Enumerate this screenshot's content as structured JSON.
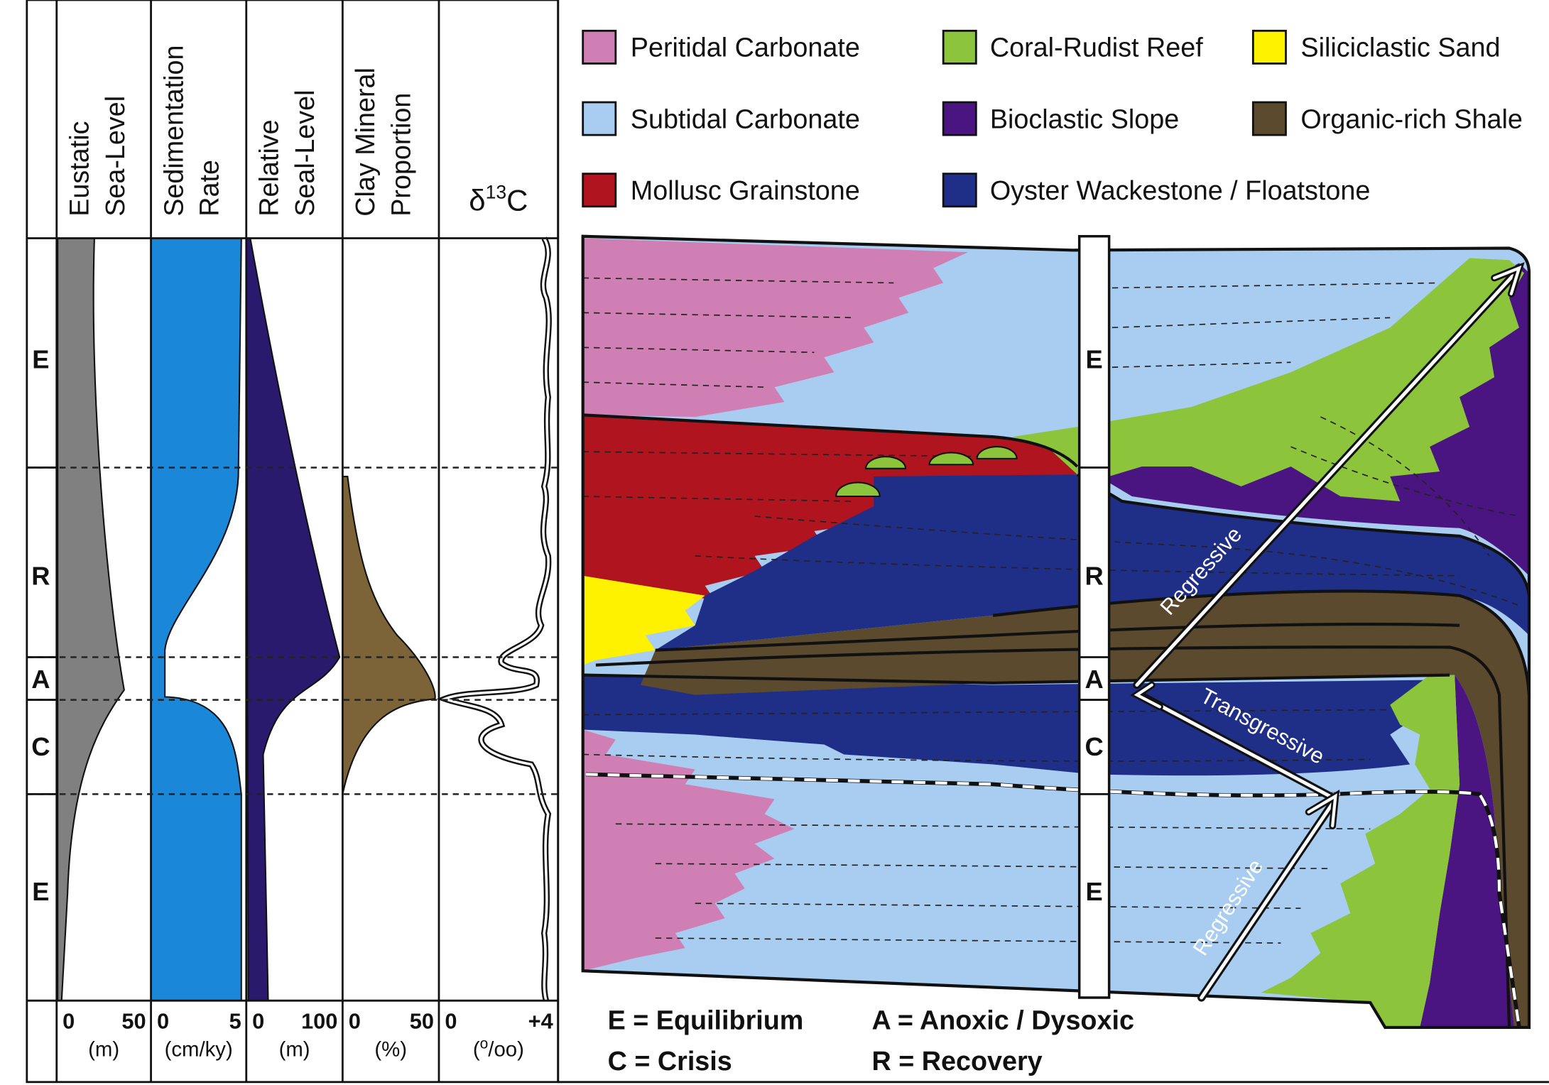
{
  "columns": [
    {
      "header": [
        "Eustatic",
        "Sea-Level"
      ],
      "scale": [
        "0",
        "50"
      ],
      "unit": "(m)"
    },
    {
      "header": [
        "Sedimentation",
        "Rate"
      ],
      "scale": [
        "0",
        "5"
      ],
      "unit": "(cm/ky)"
    },
    {
      "header": [
        "Relative",
        "Seal-Level"
      ],
      "scale": [
        "0",
        "100"
      ],
      "unit": "(m)"
    },
    {
      "header": [
        "Clay Mineral",
        "Proportion"
      ],
      "scale": [
        "0",
        "50"
      ],
      "unit": "(%)"
    },
    {
      "header_parts": {
        "base": "δ",
        "sup": "13",
        "tail": "C"
      },
      "scale": [
        "0",
        "+4"
      ],
      "unit_parts": {
        "open": "(",
        "sup": "o",
        "tail": "/oo)"
      }
    }
  ],
  "phases": [
    "E",
    "R",
    "A",
    "C",
    "E"
  ],
  "legend": [
    {
      "label": "Peritidal Carbonate",
      "color": "#cf7fb4"
    },
    {
      "label": "Coral-Rudist Reef",
      "color": "#8cc43c"
    },
    {
      "label": "Siliciclastic Sand",
      "color": "#fff200"
    },
    {
      "label": "Subtidal Carbonate",
      "color": "#a8cdf0"
    },
    {
      "label": "Bioclastic Slope",
      "color": "#4a1580"
    },
    {
      "label": "Organic-rich Shale",
      "color": "#5c4a2e"
    },
    {
      "label": "Mollusc Grainstone",
      "color": "#b0141f"
    },
    {
      "label": "Oyster Wackestone / Floatstone",
      "color": "#1f2f88"
    }
  ],
  "arrows": [
    "Regressive",
    "Transgressive",
    "Regressive"
  ],
  "key": [
    "E = Equilibrium",
    "C = Crisis",
    "A = Anoxic / Dysoxic",
    "R = Recovery"
  ]
}
